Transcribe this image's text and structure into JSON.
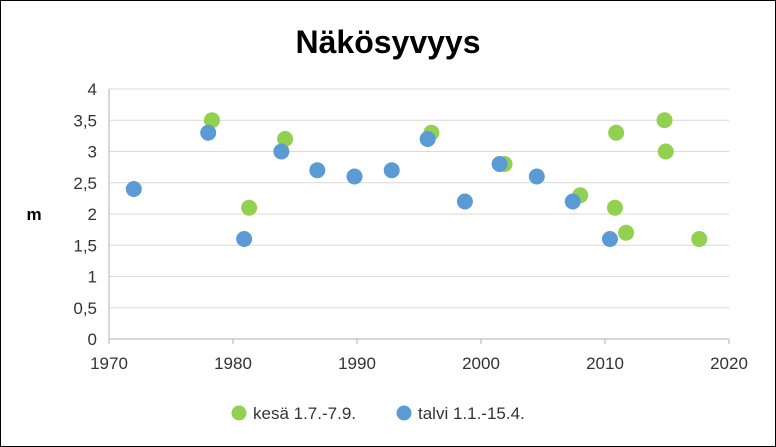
{
  "chart_data": {
    "type": "scatter",
    "title": "Näkösyvyys",
    "xlabel": "",
    "ylabel": "m",
    "xlim": [
      1970,
      2020
    ],
    "ylim": [
      0,
      4
    ],
    "x_ticks": [
      "1970",
      "1980",
      "1990",
      "2000",
      "2010",
      "2020"
    ],
    "y_ticks": [
      "0",
      "0,5",
      "1",
      "1,5",
      "2",
      "2,5",
      "3",
      "3,5",
      "4"
    ],
    "grid": true,
    "legend_position": "bottom",
    "series": [
      {
        "name": "kesä 1.7.-7.9.",
        "color": "#92d050",
        "points": [
          {
            "x": 1978.3,
            "y": 3.5
          },
          {
            "x": 1981.3,
            "y": 2.1
          },
          {
            "x": 1984.2,
            "y": 3.2
          },
          {
            "x": 1996.0,
            "y": 3.3
          },
          {
            "x": 2001.9,
            "y": 2.8
          },
          {
            "x": 2008.0,
            "y": 2.3
          },
          {
            "x": 2010.8,
            "y": 2.1
          },
          {
            "x": 2010.9,
            "y": 3.3
          },
          {
            "x": 2011.7,
            "y": 1.7
          },
          {
            "x": 2014.8,
            "y": 3.5
          },
          {
            "x": 2014.9,
            "y": 3.0
          },
          {
            "x": 2017.6,
            "y": 1.6
          }
        ]
      },
      {
        "name": "talvi 1.1.-15.4.",
        "color": "#5b9bd5",
        "points": [
          {
            "x": 1972.0,
            "y": 2.4
          },
          {
            "x": 1978.0,
            "y": 3.3
          },
          {
            "x": 1980.9,
            "y": 1.6
          },
          {
            "x": 1983.9,
            "y": 3.0
          },
          {
            "x": 1986.8,
            "y": 2.7
          },
          {
            "x": 1989.8,
            "y": 2.6
          },
          {
            "x": 1992.8,
            "y": 2.7
          },
          {
            "x": 1995.7,
            "y": 3.2
          },
          {
            "x": 1998.7,
            "y": 2.2
          },
          {
            "x": 2001.5,
            "y": 2.8
          },
          {
            "x": 2004.5,
            "y": 2.6
          },
          {
            "x": 2007.4,
            "y": 2.2
          },
          {
            "x": 2010.4,
            "y": 1.6
          }
        ]
      }
    ]
  }
}
